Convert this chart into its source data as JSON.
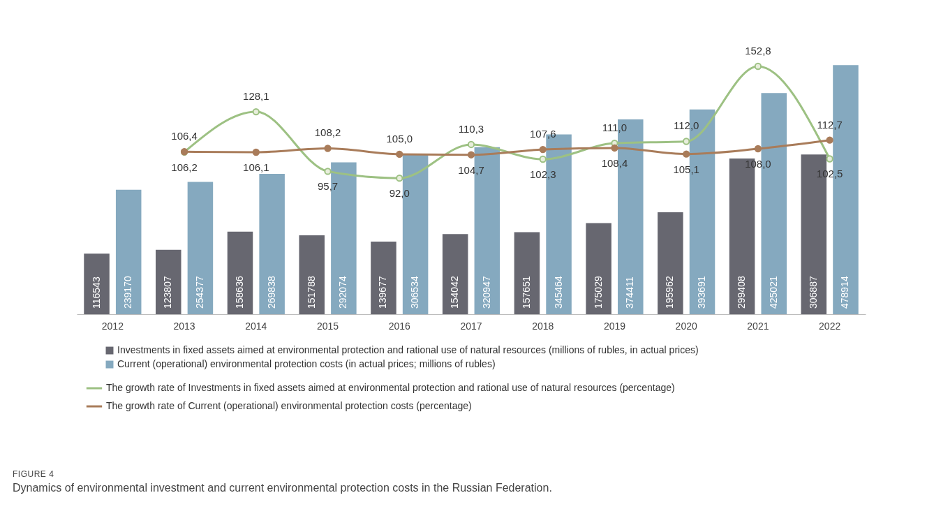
{
  "chart_data": {
    "type": "bar",
    "categories": [
      "2012",
      "2013",
      "2014",
      "2015",
      "2016",
      "2017",
      "2018",
      "2019",
      "2020",
      "2021",
      "2022"
    ],
    "tick_labels": "x",
    "legend": "bottom",
    "grid": false,
    "series": [
      {
        "name": "Investments in fixed assets aimed at environmental protection and rational use of natural resources (millions of rubles, in actual prices)",
        "color": "#676770",
        "values": [
          116543,
          123807,
          158636,
          151788,
          139677,
          154042,
          157651,
          175029,
          195962,
          299408,
          306887
        ],
        "value_labels": [
          "116543",
          "123807",
          "158636",
          "151788",
          "139677",
          "154042",
          "157651",
          "175029",
          "195962",
          "299408",
          "306887"
        ]
      },
      {
        "name": "Current (operational) environmental protection costs (in actual prices; millions of rubles)",
        "color": "#85a9bf",
        "values": [
          239170,
          254377,
          269838,
          292074,
          306534,
          320947,
          345464,
          374411,
          393691,
          425021,
          478914
        ],
        "value_labels": [
          "239170",
          "254377",
          "269838",
          "292074",
          "306534",
          "320947",
          "345464",
          "374411",
          "393691",
          "425021",
          "478914"
        ]
      },
      {
        "name": "The growth rate of Investments in fixed assets aimed at environmental protection and rational use of natural resources (percentage)",
        "type": "line",
        "axis": "y2",
        "color": "#9dc183",
        "marker": "circle",
        "values": [
          null,
          106.2,
          128.1,
          95.7,
          92.0,
          110.3,
          102.3,
          111.0,
          112.0,
          152.8,
          102.5
        ],
        "value_labels": [
          null,
          "106,2",
          "128,1",
          "95,7",
          "92,0",
          "110,3",
          "102,3",
          "111,0",
          "112,0",
          "152,8",
          "102,5"
        ]
      },
      {
        "name": "The growth rate of Current (operational) environmental protection costs (percentage)",
        "type": "line",
        "axis": "y2",
        "color": "#a97c5a",
        "marker": "circle",
        "values": [
          null,
          106.4,
          106.1,
          108.2,
          105.0,
          104.7,
          107.6,
          108.4,
          105.1,
          108.0,
          112.7
        ],
        "value_labels": [
          null,
          "106,4",
          "106,1",
          "108,2",
          "105,0",
          "104,7",
          "107,6",
          "108,4",
          "105,1",
          "108,0",
          "112,7"
        ]
      }
    ],
    "annotations": [
      "FIGURE 4",
      "Dynamics of environmental investment and current environmental protection costs in the Russian Federation."
    ]
  }
}
